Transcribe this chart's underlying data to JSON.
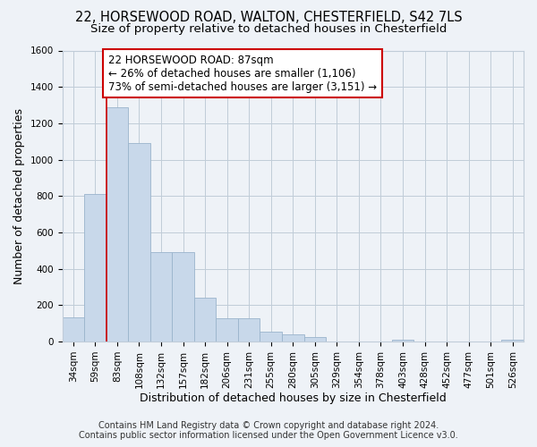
{
  "title_line1": "22, HORSEWOOD ROAD, WALTON, CHESTERFIELD, S42 7LS",
  "title_line2": "Size of property relative to detached houses in Chesterfield",
  "xlabel": "Distribution of detached houses by size in Chesterfield",
  "ylabel": "Number of detached properties",
  "footer_line1": "Contains HM Land Registry data © Crown copyright and database right 2024.",
  "footer_line2": "Contains public sector information licensed under the Open Government Licence v3.0.",
  "bar_labels": [
    "34sqm",
    "59sqm",
    "83sqm",
    "108sqm",
    "132sqm",
    "157sqm",
    "182sqm",
    "206sqm",
    "231sqm",
    "255sqm",
    "280sqm",
    "305sqm",
    "329sqm",
    "354sqm",
    "378sqm",
    "403sqm",
    "428sqm",
    "452sqm",
    "477sqm",
    "501sqm",
    "526sqm"
  ],
  "bar_values": [
    135,
    810,
    1290,
    1090,
    490,
    490,
    240,
    130,
    130,
    55,
    40,
    25,
    0,
    0,
    0,
    12,
    0,
    0,
    0,
    0,
    10
  ],
  "bar_color": "#c8d8ea",
  "bar_edgecolor": "#9ab4cc",
  "vline_color": "#cc0000",
  "vline_x": 2,
  "annotation_line1": "22 HORSEWOOD ROAD: 87sqm",
  "annotation_line2": "← 26% of detached houses are smaller (1,106)",
  "annotation_line3": "73% of semi-detached houses are larger (3,151) →",
  "annotation_box_edgecolor": "#cc0000",
  "annotation_box_facecolor": "#ffffff",
  "ylim": [
    0,
    1600
  ],
  "yticks": [
    0,
    200,
    400,
    600,
    800,
    1000,
    1200,
    1400,
    1600
  ],
  "bg_color": "#eef2f7",
  "grid_color": "#c0ccd8",
  "title_fontsize": 10.5,
  "subtitle_fontsize": 9.5,
  "axis_label_fontsize": 9,
  "tick_fontsize": 7.5,
  "footer_fontsize": 7.0
}
